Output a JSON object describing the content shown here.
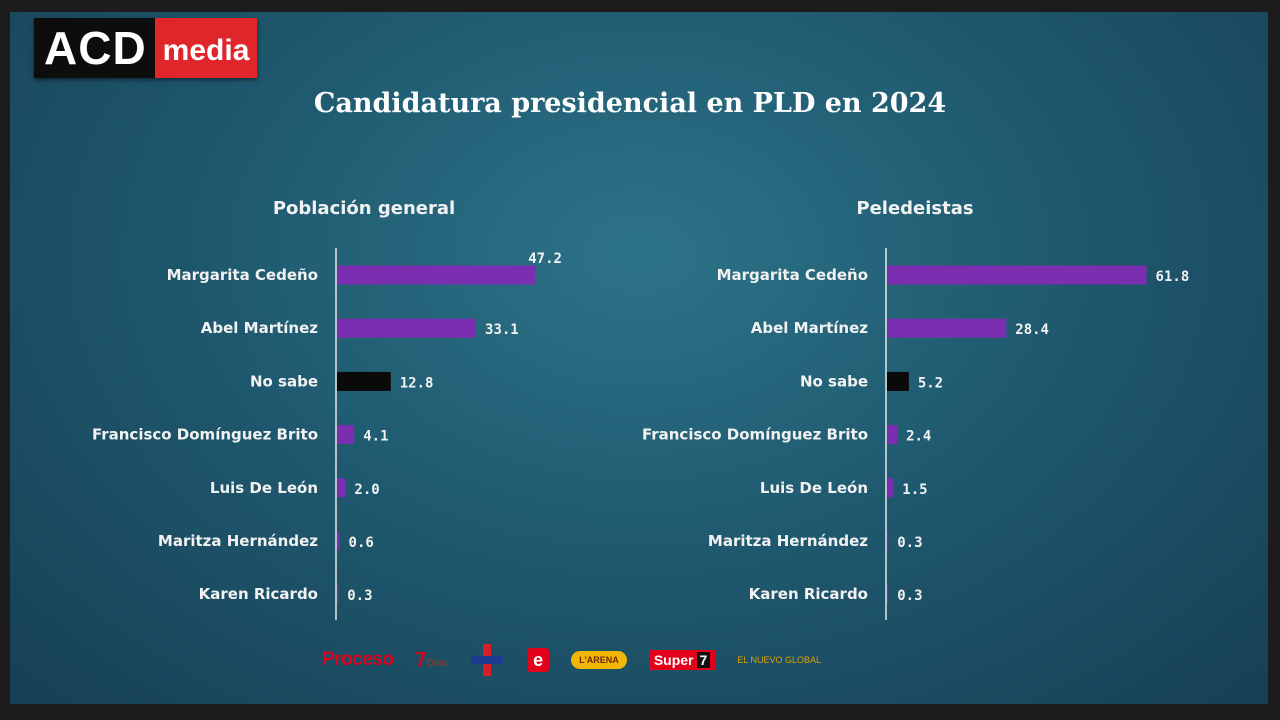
{
  "logo": {
    "part1": "ACD",
    "part2": "media"
  },
  "title": "Candidatura presidencial en PLD en 2024",
  "colors": {
    "purple": "#7b2fb0",
    "black": "#0a0a0a"
  },
  "chart_data": [
    {
      "type": "bar",
      "orientation": "horizontal",
      "title": "Población general",
      "categories": [
        "Margarita Cedeño",
        "Abel Martínez",
        "No sabe",
        "Francisco Domínguez Brito",
        "Luis De León",
        "Maritza Hernández",
        "Karen Ricardo"
      ],
      "values": [
        47.2,
        33.1,
        12.8,
        4.1,
        2.0,
        0.6,
        0.3
      ],
      "value_labels": [
        "47.2",
        "33.1",
        "12.8",
        "4.1",
        "2.0",
        "0.6",
        "0.3"
      ],
      "bar_colors": [
        "#7b2fb0",
        "#7b2fb0",
        "#0a0a0a",
        "#7b2fb0",
        "#7b2fb0",
        "#7b2fb0",
        "#7b2fb0"
      ],
      "xlim": [
        0,
        63
      ]
    },
    {
      "type": "bar",
      "orientation": "horizontal",
      "title": "Peledeistas",
      "categories": [
        "Margarita Cedeño",
        "Abel Martínez",
        "No sabe",
        "Francisco Domínguez Brito",
        "Luis De León",
        "Maritza Hernández",
        "Karen Ricardo"
      ],
      "values": [
        61.8,
        28.4,
        5.2,
        2.4,
        1.5,
        0.3,
        0.3
      ],
      "value_labels": [
        "61.8",
        "28.4",
        "5.2",
        "2.4",
        "1.5",
        "0.3",
        "0.3"
      ],
      "bar_colors": [
        "#7b2fb0",
        "#7b2fb0",
        "#0a0a0a",
        "#7b2fb0",
        "#7b2fb0",
        "#7b2fb0",
        "#7b2fb0"
      ],
      "xlim": [
        0,
        63
      ]
    }
  ],
  "sponsors": {
    "proceso": "Proceso",
    "siete": "7",
    "siete_sub": "Días",
    "eletra": "e",
    "arena": "L'ARENA",
    "super": "Super",
    "super_num": "7",
    "global": "EL NUEVO GLOBAL"
  }
}
